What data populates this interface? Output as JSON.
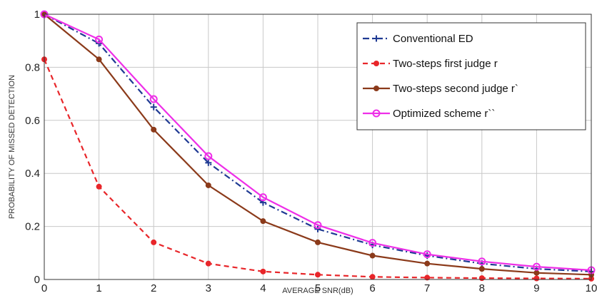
{
  "chart_data": {
    "type": "line",
    "title": "",
    "xlabel": "AVERAGE SNR(dB)",
    "ylabel": "PROBABILITY OF MISSED DETECTION",
    "xlim": [
      0,
      10
    ],
    "ylim": [
      0,
      1
    ],
    "xticks": [
      "0",
      "1",
      "2",
      "3",
      "4",
      "5",
      "6",
      "7",
      "8",
      "9",
      "10"
    ],
    "yticks": [
      "0",
      "0.2",
      "0.4",
      "0.6",
      "0.8",
      "1"
    ],
    "grid": true,
    "legend_position": "top-right",
    "x": [
      0,
      1,
      2,
      3,
      4,
      5,
      6,
      7,
      8,
      9,
      10
    ],
    "series": [
      {
        "name": "Conventional ED",
        "values": [
          1.0,
          0.89,
          0.65,
          0.44,
          0.29,
          0.19,
          0.13,
          0.09,
          0.06,
          0.04,
          0.03
        ],
        "color": "#1f3a93",
        "dash": "dashdot",
        "marker": "plus"
      },
      {
        "name": "Two-steps first judge r",
        "values": [
          0.83,
          0.35,
          0.14,
          0.06,
          0.03,
          0.018,
          0.01,
          0.007,
          0.005,
          0.004,
          0.003
        ],
        "color": "#e8262a",
        "dash": "dashed",
        "marker": "dot"
      },
      {
        "name": "Two-steps second judge r`",
        "values": [
          1.0,
          0.83,
          0.565,
          0.355,
          0.22,
          0.14,
          0.09,
          0.06,
          0.04,
          0.025,
          0.018
        ],
        "color": "#8b3a1a",
        "dash": "solid",
        "marker": "dot"
      },
      {
        "name": "Optimized scheme r``",
        "values": [
          1.0,
          0.905,
          0.68,
          0.465,
          0.31,
          0.205,
          0.138,
          0.095,
          0.068,
          0.048,
          0.035
        ],
        "color": "#ee2ee8",
        "dash": "solid",
        "marker": "circle"
      }
    ]
  }
}
